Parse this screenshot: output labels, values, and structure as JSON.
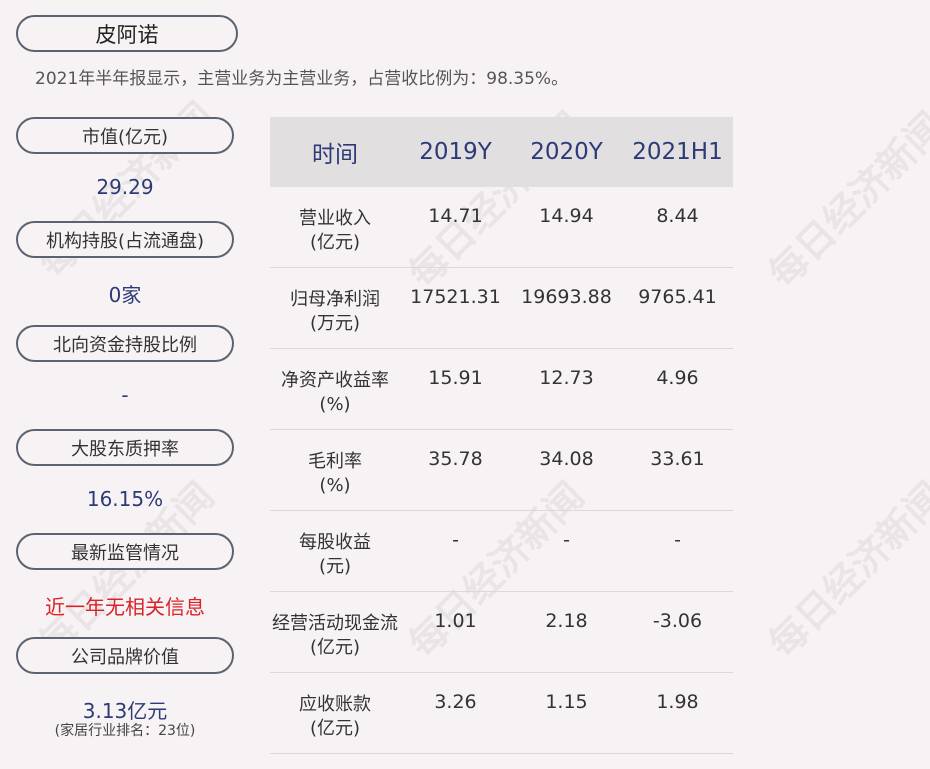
{
  "company": "皮阿诺",
  "summary": "2021年半年报显示，主营业务为主营业务，占营收比例为：98.35%。",
  "metrics": [
    {
      "label": "市值(亿元)",
      "value": "29.29"
    },
    {
      "label": "机构持股(占流通盘)",
      "value": "0家"
    },
    {
      "label": "北向资金持股比例",
      "value": "-"
    },
    {
      "label": "大股东质押率",
      "value": "16.15%"
    },
    {
      "label": "最新监管情况",
      "value": "近一年无相关信息",
      "value_color": "#d9232a"
    },
    {
      "label": "公司品牌价值",
      "value": "3.13亿元",
      "note": "(家居行业排名：23位)"
    }
  ],
  "table": {
    "headers": [
      "时间",
      "2019Y",
      "2020Y",
      "2021H1"
    ],
    "rows": [
      {
        "label_line1": "营业收入",
        "label_line2": "(亿元)",
        "values": [
          "14.71",
          "14.94",
          "8.44"
        ]
      },
      {
        "label_line1": "归母净利润",
        "label_line2": "(万元)",
        "values": [
          "17521.31",
          "19693.88",
          "9765.41"
        ]
      },
      {
        "label_line1": "净资产收益率",
        "label_line2": "(%)",
        "values": [
          "15.91",
          "12.73",
          "4.96"
        ]
      },
      {
        "label_line1": "毛利率",
        "label_line2": "(%)",
        "values": [
          "35.78",
          "34.08",
          "33.61"
        ]
      },
      {
        "label_line1": "每股收益",
        "label_line2": "(元)",
        "values": [
          "-",
          "-",
          "-"
        ]
      },
      {
        "label_line1": "经营活动现金流",
        "label_line2": "(亿元)",
        "values": [
          "1.01",
          "2.18",
          "-3.06"
        ]
      },
      {
        "label_line1": "应收账款",
        "label_line2": "(亿元)",
        "values": [
          "3.26",
          "1.15",
          "1.98"
        ]
      }
    ]
  },
  "watermark": "每日经济新闻",
  "colors": {
    "accent": "#2d3a78",
    "alert": "#d9232a",
    "header_bg": "#e1dfe0",
    "page_bg": "#f7f3f4"
  }
}
